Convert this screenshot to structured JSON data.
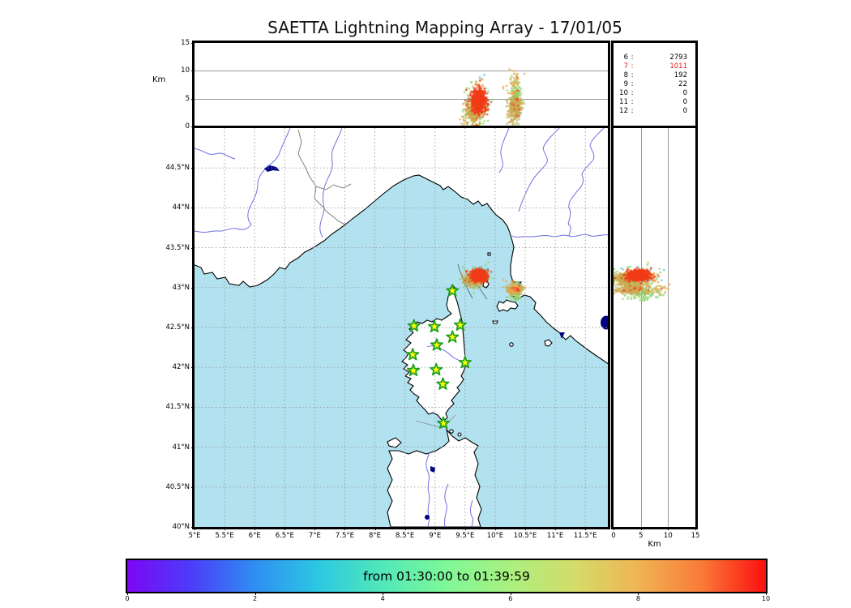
{
  "title": "SAETTA Lightning Mapping Array - 17/01/05",
  "alt_lon_panel": {
    "ylabel": "Km",
    "yticks": [
      15,
      10,
      5,
      0
    ],
    "alt_max_km": 15
  },
  "alt_lat_panel": {
    "xlabel": "Km",
    "xticks": [
      0,
      5,
      10,
      15
    ],
    "alt_max_km": 15
  },
  "map_panel": {
    "lon_ticks": [
      {
        "label": "5°E",
        "value": 5
      },
      {
        "label": "5.5°E",
        "value": 5.5
      },
      {
        "label": "6°E",
        "value": 6
      },
      {
        "label": "6.5°E",
        "value": 6.5
      },
      {
        "label": "7°E",
        "value": 7
      },
      {
        "label": "7.5°E",
        "value": 7.5
      },
      {
        "label": "8°E",
        "value": 8
      },
      {
        "label": "8.5°E",
        "value": 8.5
      },
      {
        "label": "9°E",
        "value": 9
      },
      {
        "label": "9.5°E",
        "value": 9.5
      },
      {
        "label": "10°E",
        "value": 10
      },
      {
        "label": "10.5°E",
        "value": 10.5
      },
      {
        "label": "11°E",
        "value": 11
      },
      {
        "label": "11.5°E",
        "value": 11.5
      }
    ],
    "lat_ticks": [
      {
        "label": "40°N",
        "value": 40
      },
      {
        "label": "40.5°N",
        "value": 40.5
      },
      {
        "label": "41°N",
        "value": 41
      },
      {
        "label": "41.5°N",
        "value": 41.5
      },
      {
        "label": "42°N",
        "value": 42
      },
      {
        "label": "42.5°N",
        "value": 42.5
      },
      {
        "label": "43°N",
        "value": 43
      },
      {
        "label": "43.5°N",
        "value": 43.5
      },
      {
        "label": "44°N",
        "value": 44
      },
      {
        "label": "44.5°N",
        "value": 44.5
      }
    ],
    "sea_color": "#b2e2f0",
    "land_color": "#ffffff",
    "lake_color": "#000080",
    "river_color": "#7070e0",
    "border_color": "#808080",
    "station_fill": "#ffff00",
    "station_edge": "#1fa01f"
  },
  "counts_table": {
    "rows": [
      {
        "label": "6",
        "value": "2793",
        "color": "#000000"
      },
      {
        "label": "7",
        "value": "1011",
        "color": "#e81414"
      },
      {
        "label": "8",
        "value": "192",
        "color": "#000000"
      },
      {
        "label": "9",
        "value": "22",
        "color": "#000000"
      },
      {
        "label": "10",
        "value": "0",
        "color": "#000000"
      },
      {
        "label": "11",
        "value": "0",
        "color": "#000000"
      },
      {
        "label": "12",
        "value": "0",
        "color": "#000000"
      }
    ]
  },
  "colorbar": {
    "label": "from 01:30:00 to 01:39:59",
    "ticks": [
      "0",
      "2",
      "4",
      "6",
      "8",
      "10"
    ],
    "range": [
      0,
      10
    ],
    "stops": [
      "#7d06f5",
      "#4b3df8",
      "#2f8ef2",
      "#2cc8e2",
      "#52e8b8",
      "#7ff898",
      "#aaf07e",
      "#d4dc6a",
      "#f0b454",
      "#f97a38",
      "#fb0f0f"
    ]
  },
  "chart_data": {
    "type": "scatter",
    "title": "SAETTA Lightning Mapping Array - 17/01/05",
    "time_window": "from 01:30:00 to 01:39:59",
    "map_extent": {
      "lon_min": 5,
      "lon_max": 11.875,
      "lat_min": 40,
      "lat_max": 45
    },
    "altitude_range_km": [
      0,
      15
    ],
    "colorbar_range_minutes": [
      0,
      10
    ],
    "source_counts": [
      [
        "6",
        2793
      ],
      [
        "7",
        1011
      ],
      [
        "8",
        192
      ],
      [
        "9",
        22
      ],
      [
        "10",
        0
      ],
      [
        "11",
        0
      ],
      [
        "12",
        0
      ]
    ],
    "stations": [
      {
        "lon": 9.29,
        "lat": 42.96
      },
      {
        "lon": 8.65,
        "lat": 42.52
      },
      {
        "lon": 8.99,
        "lat": 42.51
      },
      {
        "lon": 9.42,
        "lat": 42.53
      },
      {
        "lon": 9.29,
        "lat": 42.38
      },
      {
        "lon": 9.03,
        "lat": 42.28
      },
      {
        "lon": 8.63,
        "lat": 42.16
      },
      {
        "lon": 9.5,
        "lat": 42.06
      },
      {
        "lon": 8.64,
        "lat": 41.96
      },
      {
        "lon": 9.02,
        "lat": 41.97
      },
      {
        "lon": 9.13,
        "lat": 41.79
      },
      {
        "lon": 9.14,
        "lat": 41.3
      }
    ],
    "clusters": [
      {
        "name": "west-storm-early",
        "color": "#2fc5e8",
        "n": 15,
        "lon_mu": 9.72,
        "lon_sd": 0.1,
        "lat_mu": 43.16,
        "lat_sd": 0.06,
        "alt_mu": 6.0,
        "alt_sd": 2.5
      },
      {
        "name": "west-storm-green",
        "color": "#86d35f",
        "n": 130,
        "lon_mu": 9.7,
        "lon_sd": 0.1,
        "lat_mu": 43.12,
        "lat_sd": 0.06,
        "alt_mu": 3.5,
        "alt_sd": 2.0
      },
      {
        "name": "west-storm-tan",
        "color": "#c9a84c",
        "n": 220,
        "lon_mu": 9.63,
        "lon_sd": 0.08,
        "lat_mu": 43.1,
        "lat_sd": 0.05,
        "alt_mu": 2.5,
        "alt_sd": 1.2
      },
      {
        "name": "west-storm-orange",
        "color": "#f09a3e",
        "n": 60,
        "lon_mu": 9.72,
        "lon_sd": 0.07,
        "lat_mu": 43.14,
        "lat_sd": 0.05,
        "alt_mu": 4.5,
        "alt_sd": 1.8
      },
      {
        "name": "west-storm-late-red",
        "color": "#f03b17",
        "n": 620,
        "lon_mu": 9.73,
        "lon_sd": 0.06,
        "lat_mu": 43.15,
        "lat_sd": 0.035,
        "alt_mu": 4.6,
        "alt_sd": 1.1
      },
      {
        "name": "east-storm-early",
        "color": "#2fc5e8",
        "n": 6,
        "lon_mu": 10.33,
        "lon_sd": 0.07,
        "lat_mu": 42.97,
        "lat_sd": 0.04,
        "alt_mu": 5.0,
        "alt_sd": 2.0
      },
      {
        "name": "east-storm-green",
        "color": "#8fd470",
        "n": 190,
        "lon_mu": 10.34,
        "lon_sd": 0.05,
        "lat_mu": 42.95,
        "lat_sd": 0.05,
        "alt_mu": 5.2,
        "alt_sd": 1.6
      },
      {
        "name": "east-storm-tan",
        "color": "#ccab55",
        "n": 290,
        "lon_mu": 10.33,
        "lon_sd": 0.055,
        "lat_mu": 42.98,
        "lat_sd": 0.028,
        "alt_mu": 3.2,
        "alt_sd": 1.1
      },
      {
        "name": "east-storm-orange",
        "color": "#f0a040",
        "n": 28,
        "lon_mu": 10.31,
        "lon_sd": 0.07,
        "lat_mu": 42.99,
        "lat_sd": 0.04,
        "alt_mu": 6.5,
        "alt_sd": 1.8
      },
      {
        "name": "east-storm-high",
        "color": "#e8b860",
        "n": 20,
        "lon_mu": 10.33,
        "lon_sd": 0.03,
        "lat_mu": 42.98,
        "lat_sd": 0.02,
        "alt_mu": 8.5,
        "alt_sd": 1.0
      },
      {
        "name": "east-storm-red",
        "color": "#ee4422",
        "n": 12,
        "lon_mu": 10.36,
        "lon_sd": 0.04,
        "lat_mu": 42.99,
        "lat_sd": 0.03,
        "alt_mu": 4.0,
        "alt_sd": 1.5
      }
    ]
  }
}
